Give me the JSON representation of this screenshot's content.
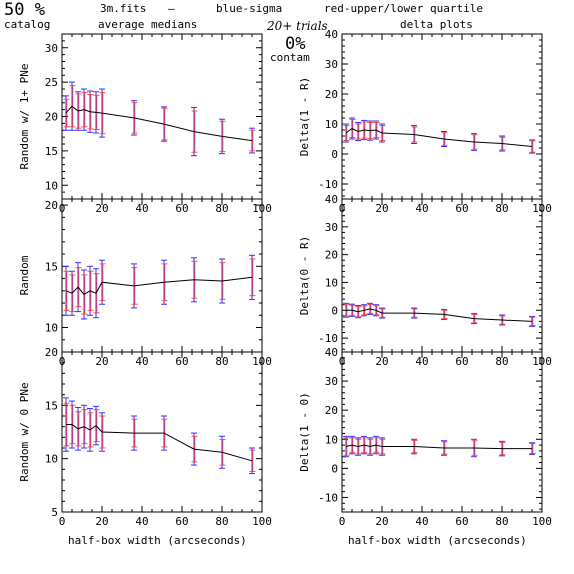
{
  "header": {
    "percent": "50 %",
    "catalog": "catalog",
    "filename": "3m.fits",
    "dash": "—",
    "averages": "average medians",
    "blue_label": "blue-sigma",
    "red_label": "red-upper/lower quartile",
    "trials": "20+ trials",
    "contam_pct": "0%",
    "contam": "contam",
    "delta_title": "delta plots",
    "blue_color": "#3333ff",
    "red_color": "#ff3333"
  },
  "xlabel": "half-box width (arcseconds)",
  "chart_data": [
    {
      "type": "line",
      "id": "left-1",
      "ylabel": "Random w/ 1+ PNe",
      "xlim": [
        0,
        100
      ],
      "ylim": [
        8,
        32
      ],
      "xticks": [
        "0",
        "20",
        "40",
        "60",
        "80",
        "100"
      ],
      "yticks": [
        {
          "v": 10,
          "label": "10"
        },
        {
          "v": 15,
          "label": "15"
        },
        {
          "v": 20,
          "label": "20"
        },
        {
          "v": 25,
          "label": "25"
        },
        {
          "v": 30,
          "label": "30"
        }
      ],
      "x": [
        2,
        5,
        8,
        11,
        14,
        17,
        20,
        36,
        51,
        66,
        80,
        95
      ],
      "y": [
        20.5,
        21.5,
        20.8,
        21,
        20.7,
        20.6,
        20.5,
        19.8,
        18.9,
        17.8,
        17.1,
        16.5
      ],
      "sig": [
        2.5,
        3.5,
        2.8,
        3,
        3,
        3,
        3.5,
        2.5,
        2.5,
        3.5,
        2.5,
        1.8
      ],
      "quart": [
        2,
        3,
        2.5,
        2.5,
        2.5,
        2.5,
        3,
        2.2,
        2.3,
        3,
        2.2,
        1.5
      ]
    },
    {
      "type": "line",
      "id": "right-1",
      "ylabel": "Delta(1 - R)",
      "xlim": [
        0,
        100
      ],
      "ylim": [
        -15,
        40
      ],
      "xticks": [
        "0",
        "20",
        "40",
        "60",
        "80",
        "100"
      ],
      "yticks": [
        {
          "v": -10,
          "label": "-10"
        },
        {
          "v": 0,
          "label": "0"
        },
        {
          "v": 10,
          "label": "10"
        },
        {
          "v": 20,
          "label": "20"
        },
        {
          "v": 30,
          "label": "30"
        },
        {
          "v": 40,
          "label": "40"
        }
      ],
      "x": [
        2,
        5,
        8,
        11,
        14,
        17,
        20,
        36,
        51,
        66,
        80,
        95
      ],
      "y": [
        7,
        8.5,
        7.5,
        8,
        7.8,
        8,
        7,
        6.5,
        5,
        4,
        3.5,
        2.5
      ],
      "sig": [
        3,
        3.5,
        3,
        3.2,
        3.2,
        3,
        3,
        3,
        2.5,
        2.8,
        2.5,
        2.2
      ],
      "quart": [
        2.5,
        3,
        2.5,
        2.7,
        2.7,
        2.5,
        2.5,
        2.5,
        2.1,
        2.4,
        2.1,
        1.9
      ]
    },
    {
      "type": "line",
      "id": "left-2",
      "ylabel": "Random",
      "xlim": [
        0,
        100
      ],
      "ylim": [
        8,
        20.5
      ],
      "xticks": [
        "0",
        "20",
        "40",
        "60",
        "80",
        "100"
      ],
      "yticks": [
        {
          "v": 10,
          "label": "10"
        },
        {
          "v": 15,
          "label": "15"
        },
        {
          "v": 20,
          "label": "20"
        }
      ],
      "x": [
        2,
        5,
        8,
        11,
        14,
        17,
        20,
        36,
        51,
        66,
        80,
        95
      ],
      "y": [
        13,
        12.8,
        13.3,
        12.7,
        13,
        12.8,
        13.7,
        13.4,
        13.7,
        13.9,
        13.8,
        14.1
      ],
      "sig": [
        2,
        1.8,
        2,
        2,
        2,
        2,
        1.8,
        1.8,
        1.8,
        1.8,
        1.8,
        1.8
      ],
      "quart": [
        1.6,
        1.5,
        1.6,
        1.6,
        1.6,
        1.6,
        1.5,
        1.5,
        1.5,
        1.5,
        1.5,
        1.5
      ]
    },
    {
      "type": "line",
      "id": "right-2",
      "ylabel": "Delta(0 - R)",
      "xlim": [
        0,
        100
      ],
      "ylim": [
        -15,
        40
      ],
      "xticks": [
        "0",
        "20",
        "40",
        "60",
        "80",
        "100"
      ],
      "yticks": [
        {
          "v": -10,
          "label": "-10"
        },
        {
          "v": 0,
          "label": "0"
        },
        {
          "v": 10,
          "label": "10"
        },
        {
          "v": 20,
          "label": "20"
        },
        {
          "v": 30,
          "label": "30"
        },
        {
          "v": 40,
          "label": "40"
        }
      ],
      "x": [
        2,
        5,
        8,
        11,
        14,
        17,
        20,
        36,
        51,
        66,
        80,
        95
      ],
      "y": [
        0,
        0,
        -0.5,
        0,
        0.5,
        0,
        -1,
        -1,
        -1.5,
        -3,
        -3.5,
        -4
      ],
      "sig": [
        2.5,
        2.2,
        2.2,
        2,
        2,
        2,
        1.8,
        1.8,
        1.8,
        1.8,
        1.8,
        1.8
      ],
      "quart": [
        2,
        1.8,
        1.8,
        1.6,
        1.6,
        1.6,
        1.5,
        1.5,
        1.5,
        1.5,
        1.5,
        1.5
      ]
    },
    {
      "type": "line",
      "id": "left-3",
      "ylabel": "Random w/ 0 PNe",
      "xlim": [
        0,
        100
      ],
      "ylim": [
        5,
        20
      ],
      "xticks": [
        "0",
        "20",
        "40",
        "60",
        "80",
        "100"
      ],
      "yticks": [
        {
          "v": 5,
          "label": "5"
        },
        {
          "v": 10,
          "label": "10"
        },
        {
          "v": 15,
          "label": "15"
        },
        {
          "v": 20,
          "label": "20"
        }
      ],
      "x": [
        2,
        5,
        8,
        11,
        14,
        17,
        20,
        36,
        51,
        66,
        80,
        95
      ],
      "y": [
        13.2,
        13.2,
        12.8,
        13,
        12.7,
        13.1,
        12.5,
        12.4,
        12.4,
        10.9,
        10.6,
        9.8
      ],
      "sig": [
        2.5,
        2.2,
        2,
        2,
        2,
        1.8,
        1.8,
        1.6,
        1.6,
        1.5,
        1.5,
        1.2
      ],
      "quart": [
        2,
        1.8,
        1.6,
        1.6,
        1.6,
        1.5,
        1.5,
        1.3,
        1.3,
        1.2,
        1.2,
        1
      ]
    },
    {
      "type": "line",
      "id": "right-3",
      "ylabel": "Delta(1 - 0)",
      "xlim": [
        0,
        100
      ],
      "ylim": [
        -15,
        40
      ],
      "xticks": [
        "0",
        "20",
        "40",
        "60",
        "80",
        "100"
      ],
      "yticks": [
        {
          "v": -10,
          "label": "-10"
        },
        {
          "v": 0,
          "label": "0"
        },
        {
          "v": 10,
          "label": "10"
        },
        {
          "v": 20,
          "label": "20"
        },
        {
          "v": 30,
          "label": "30"
        },
        {
          "v": 40,
          "label": "40"
        }
      ],
      "x": [
        2,
        5,
        8,
        11,
        14,
        17,
        20,
        36,
        51,
        66,
        80,
        95
      ],
      "y": [
        7.5,
        8,
        7.5,
        8,
        7.5,
        8,
        7.5,
        7.5,
        7,
        7,
        6.8,
        6.8
      ],
      "sig": [
        3.5,
        3,
        3,
        3,
        3,
        3,
        3,
        2.5,
        2.5,
        3,
        2.5,
        2
      ],
      "quart": [
        3,
        2.5,
        2.5,
        2.5,
        2.5,
        2.5,
        2.5,
        2.1,
        2.1,
        2.5,
        2.1,
        1.7
      ]
    }
  ]
}
